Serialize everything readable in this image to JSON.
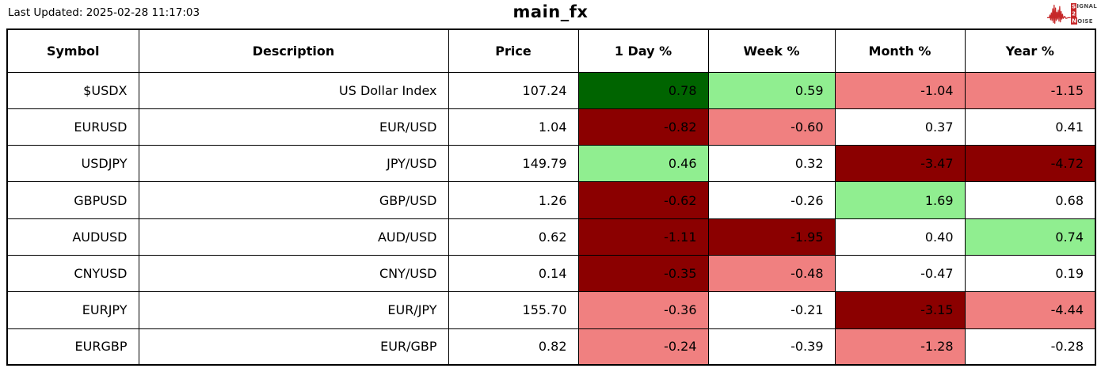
{
  "header": {
    "last_updated": "Last Updated: 2025-02-28 11:17:03",
    "title": "main_fx",
    "logo": {
      "line1": "SIGNAL",
      "line2": "2",
      "line3": "NOISE"
    }
  },
  "colors": {
    "up_strong": "#006400",
    "up": "#90EE90",
    "down": "#F08080",
    "down_strong": "#8B0000",
    "neutral": "#FFFFFF",
    "logo_red": "#C62829",
    "border": "#000000"
  },
  "table": {
    "columns": [
      "Symbol",
      "Description",
      "Price",
      "1 Day %",
      "Week %",
      "Month %",
      "Year %"
    ],
    "rows": [
      {
        "symbol": "$USDX",
        "description": "US Dollar Index",
        "price": "107.24",
        "changes": [
          {
            "value": "0.78",
            "tone": "up_strong"
          },
          {
            "value": "0.59",
            "tone": "up"
          },
          {
            "value": "-1.04",
            "tone": "down"
          },
          {
            "value": "-1.15",
            "tone": "down"
          }
        ]
      },
      {
        "symbol": "EURUSD",
        "description": "EUR/USD",
        "price": "1.04",
        "changes": [
          {
            "value": "-0.82",
            "tone": "down_strong"
          },
          {
            "value": "-0.60",
            "tone": "down"
          },
          {
            "value": "0.37",
            "tone": "neutral"
          },
          {
            "value": "0.41",
            "tone": "neutral"
          }
        ]
      },
      {
        "symbol": "USDJPY",
        "description": "JPY/USD",
        "price": "149.79",
        "changes": [
          {
            "value": "0.46",
            "tone": "up"
          },
          {
            "value": "0.32",
            "tone": "neutral"
          },
          {
            "value": "-3.47",
            "tone": "down_strong"
          },
          {
            "value": "-4.72",
            "tone": "down_strong"
          }
        ]
      },
      {
        "symbol": "GBPUSD",
        "description": "GBP/USD",
        "price": "1.26",
        "changes": [
          {
            "value": "-0.62",
            "tone": "down_strong"
          },
          {
            "value": "-0.26",
            "tone": "neutral"
          },
          {
            "value": "1.69",
            "tone": "up"
          },
          {
            "value": "0.68",
            "tone": "neutral"
          }
        ]
      },
      {
        "symbol": "AUDUSD",
        "description": "AUD/USD",
        "price": "0.62",
        "changes": [
          {
            "value": "-1.11",
            "tone": "down_strong"
          },
          {
            "value": "-1.95",
            "tone": "down_strong"
          },
          {
            "value": "0.40",
            "tone": "neutral"
          },
          {
            "value": "0.74",
            "tone": "up"
          }
        ]
      },
      {
        "symbol": "CNYUSD",
        "description": "CNY/USD",
        "price": "0.14",
        "changes": [
          {
            "value": "-0.35",
            "tone": "down_strong"
          },
          {
            "value": "-0.48",
            "tone": "down"
          },
          {
            "value": "-0.47",
            "tone": "neutral"
          },
          {
            "value": "0.19",
            "tone": "neutral"
          }
        ]
      },
      {
        "symbol": "EURJPY",
        "description": "EUR/JPY",
        "price": "155.70",
        "changes": [
          {
            "value": "-0.36",
            "tone": "down"
          },
          {
            "value": "-0.21",
            "tone": "neutral"
          },
          {
            "value": "-3.15",
            "tone": "down_strong"
          },
          {
            "value": "-4.44",
            "tone": "down"
          }
        ]
      },
      {
        "symbol": "EURGBP",
        "description": "EUR/GBP",
        "price": "0.82",
        "changes": [
          {
            "value": "-0.24",
            "tone": "down"
          },
          {
            "value": "-0.39",
            "tone": "neutral"
          },
          {
            "value": "-1.28",
            "tone": "down"
          },
          {
            "value": "-0.28",
            "tone": "neutral"
          }
        ]
      }
    ]
  },
  "chart_data": {
    "type": "table",
    "title": "main_fx",
    "last_updated": "2025-02-28 11:17:03",
    "columns": [
      "Symbol",
      "Description",
      "Price",
      "1 Day %",
      "Week %",
      "Month %",
      "Year %"
    ],
    "rows": [
      [
        "$USDX",
        "US Dollar Index",
        107.24,
        0.78,
        0.59,
        -1.04,
        -1.15
      ],
      [
        "EURUSD",
        "EUR/USD",
        1.04,
        -0.82,
        -0.6,
        0.37,
        0.41
      ],
      [
        "USDJPY",
        "JPY/USD",
        149.79,
        0.46,
        0.32,
        -3.47,
        -4.72
      ],
      [
        "GBPUSD",
        "GBP/USD",
        1.26,
        -0.62,
        -0.26,
        1.69,
        0.68
      ],
      [
        "AUDUSD",
        "AUD/USD",
        0.62,
        -1.11,
        -1.95,
        0.4,
        0.74
      ],
      [
        "CNYUSD",
        "CNY/USD",
        0.14,
        -0.35,
        -0.48,
        -0.47,
        0.19
      ],
      [
        "EURJPY",
        "EUR/JPY",
        155.7,
        -0.36,
        -0.21,
        -3.15,
        -4.44
      ],
      [
        "EURGBP",
        "EUR/GBP",
        0.82,
        -0.24,
        -0.39,
        -1.28,
        -0.28
      ]
    ],
    "cell_color_legend": {
      "dark_green": "strong gain",
      "light_green": "gain",
      "light_red": "loss",
      "dark_red": "strong loss",
      "white": "neutral"
    }
  }
}
